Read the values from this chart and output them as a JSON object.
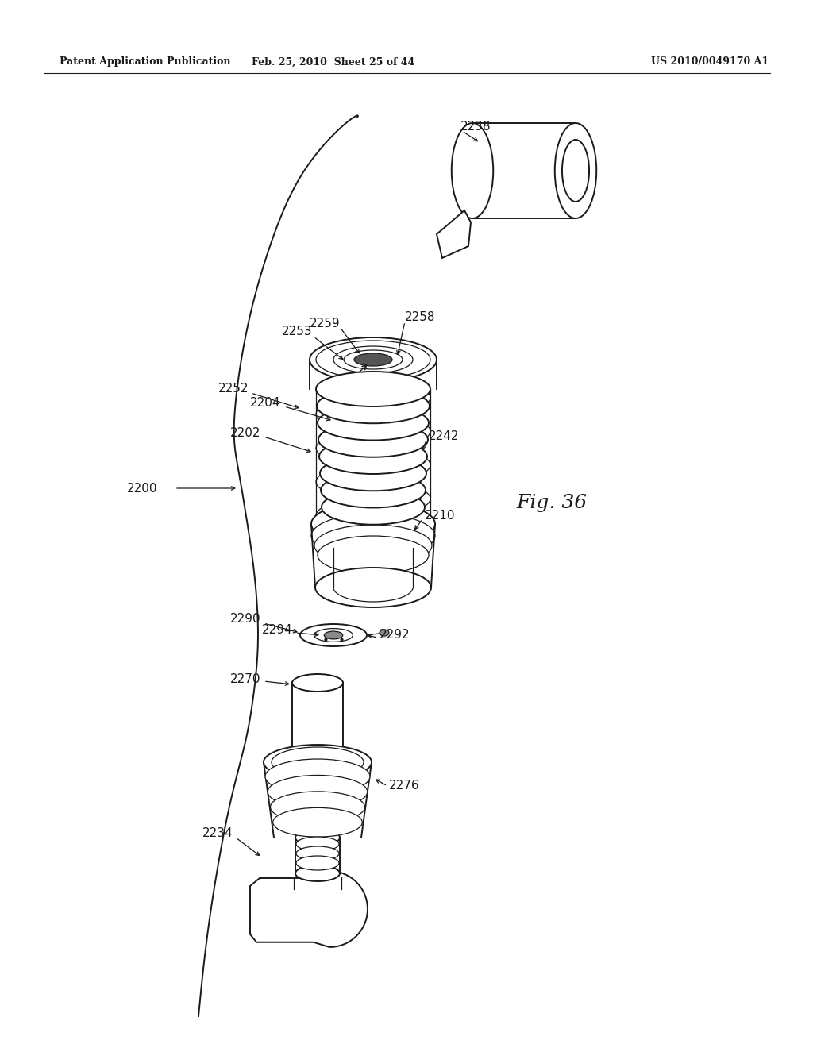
{
  "header_left": "Patent Application Publication",
  "header_mid": "Feb. 25, 2010  Sheet 25 of 44",
  "header_right": "US 2010/0049170 A1",
  "fig_label": "Fig. 36",
  "bg_color": "#ffffff",
  "line_color": "#1a1a1a",
  "lw_main": 1.4,
  "lw_thin": 0.9,
  "lw_thick": 2.0
}
